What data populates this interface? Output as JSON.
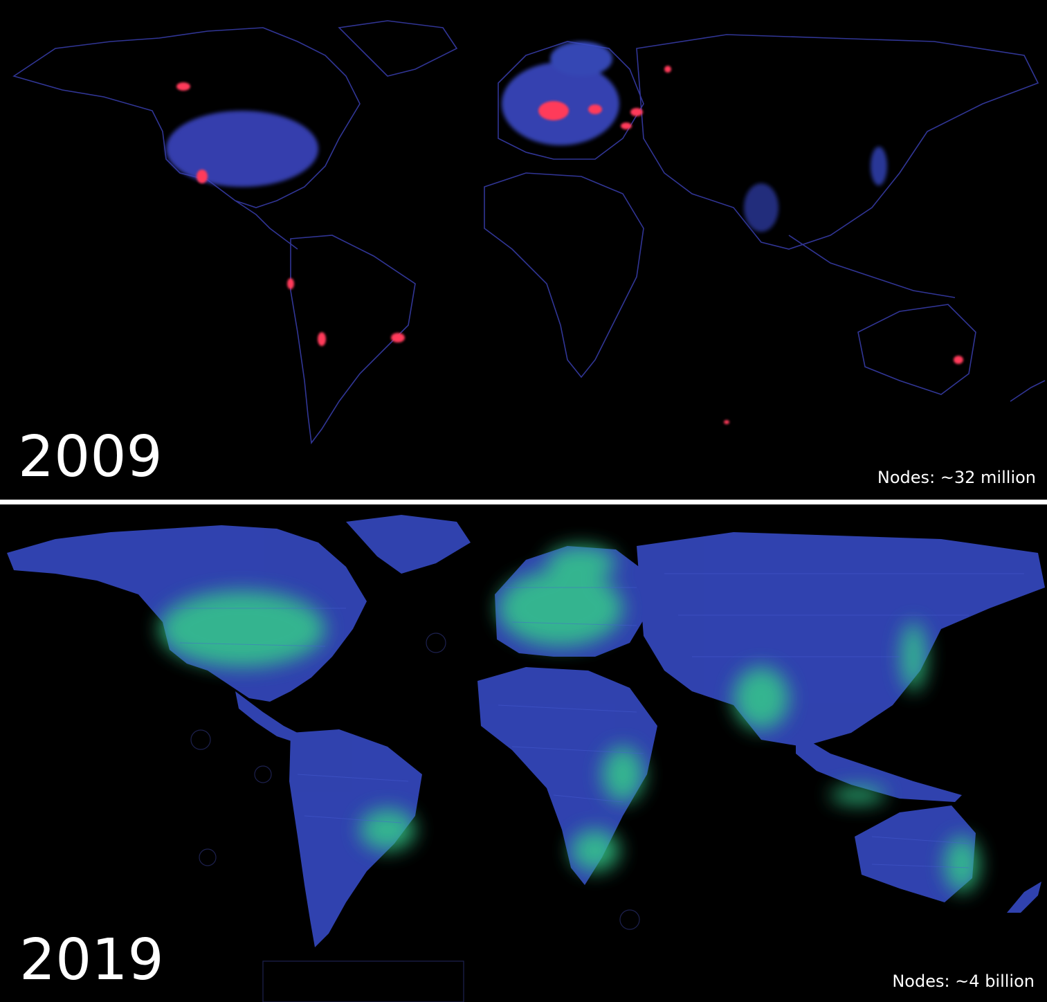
{
  "panels": [
    {
      "year": "2009",
      "nodes_label": "Nodes: ~32 million",
      "base_color": "#3b3fb8",
      "glow_color": "#3a62d8",
      "hot_color": "#ff3a5a"
    },
    {
      "year": "2019",
      "nodes_label": "Nodes: ~4 billion",
      "base_color": "#3e58d0",
      "glow_color": "#3ad08a",
      "hot_color": "#2ed6a0"
    }
  ]
}
